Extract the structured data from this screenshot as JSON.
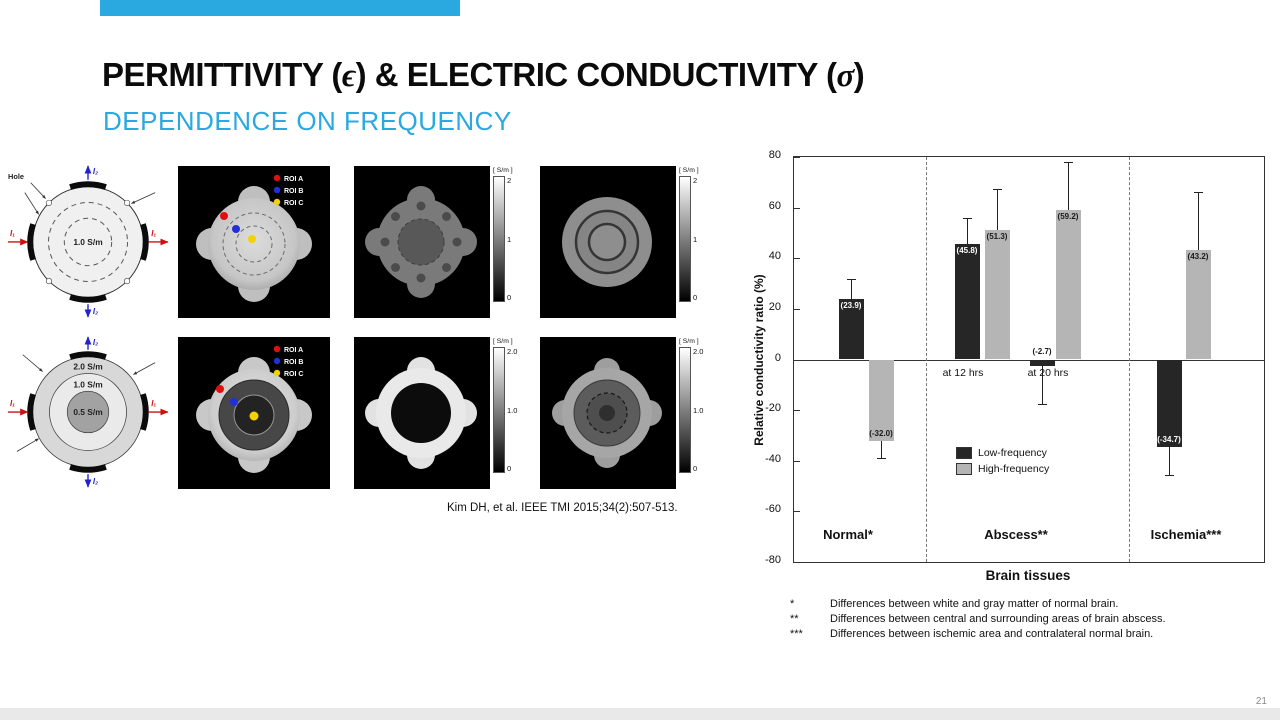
{
  "slide": {
    "title": {
      "part1": "PERMITTIVITY (",
      "epsilon": "ϵ",
      "part2": ") & ELECTRIC CONDUCTIVITY (",
      "sigma": "σ",
      "part3": ")"
    },
    "subtitle": "DEPENDENCE ON FREQUENCY",
    "accent_color": "#29A9E0",
    "page_number": "21"
  },
  "citation": "Kim DH, et al. IEEE TMI 2015;34(2):507-513.",
  "phantom_row1": {
    "schematic": {
      "hole_label": "Hole",
      "center_label": "1.0 S/m",
      "current1": "I₁",
      "current2": "I₂"
    },
    "roi_legend": {
      "a": "ROI A",
      "b": "ROI B",
      "c": "ROI C"
    },
    "roi_colors": {
      "a": "#e01010",
      "b": "#2030d8",
      "c": "#f2d200"
    },
    "colorbar": {
      "unit": "[ S/m ]",
      "tick_top": "2",
      "tick_mid": "1",
      "tick_bottom": "0"
    }
  },
  "phantom_row2": {
    "schematic": {
      "outer_label": "2.0 S/m",
      "middle_label": "1.0 S/m",
      "inner_label": "0.5 S/m",
      "current1": "I₁",
      "current2": "I₂"
    },
    "roi_legend": {
      "a": "ROI A",
      "b": "ROI B",
      "c": "ROI C"
    },
    "colorbar": {
      "unit": "[ S/m ]",
      "tick_top": "2.0",
      "tick_mid": "1.0",
      "tick_bottom": "0"
    }
  },
  "chart_data": {
    "type": "bar",
    "ylabel": "Relative conductivity ratio (%)",
    "xlabel": "Brain tissues",
    "ylim": [
      -80,
      80
    ],
    "yticks": [
      80,
      60,
      40,
      20,
      0,
      -20,
      -40,
      -60,
      -80
    ],
    "grid": false,
    "legend_position": "inside-lower-middle",
    "categories": [
      "Normal*",
      "Abscess**",
      "Ischemia***"
    ],
    "series_legend": [
      {
        "name": "Low-frequency",
        "color": "#262626"
      },
      {
        "name": "High-frequency",
        "color": "#b5b5b5"
      }
    ],
    "subgroup_labels": [
      "at 12 hrs",
      "at 20 hrs"
    ],
    "bars": [
      {
        "group": "Normal",
        "series": "Low-frequency",
        "value": 23.9,
        "label": "(23.9)",
        "err": 8
      },
      {
        "group": "Normal",
        "series": "High-frequency",
        "value": -32.0,
        "label": "(-32.0)",
        "err": 7
      },
      {
        "group": "Abscess at 12 hrs",
        "series": "Low-frequency",
        "value": 45.8,
        "label": "(45.8)",
        "err": 10
      },
      {
        "group": "Abscess at 12 hrs",
        "series": "High-frequency",
        "value": 51.3,
        "label": "(51.3)",
        "err": 16
      },
      {
        "group": "Abscess at 20 hrs",
        "series": "Low-frequency",
        "value": -2.7,
        "label": "(-2.7)",
        "err": 15
      },
      {
        "group": "Abscess at 20 hrs",
        "series": "High-frequency",
        "value": 59.2,
        "label": "(59.2)",
        "err": 19
      },
      {
        "group": "Ischemia",
        "series": "Low-frequency",
        "value": -34.7,
        "label": "(-34.7)",
        "err": 11
      },
      {
        "group": "Ischemia",
        "series": "High-frequency",
        "value": 43.2,
        "label": "(43.2)",
        "err": 23
      }
    ],
    "footnotes": [
      {
        "marker": "*",
        "text": "Differences between white and gray matter of normal brain."
      },
      {
        "marker": "**",
        "text": "Differences between central and surrounding areas of brain abscess."
      },
      {
        "marker": "***",
        "text": "Differences between ischemic area and contralateral normal brain."
      }
    ]
  }
}
